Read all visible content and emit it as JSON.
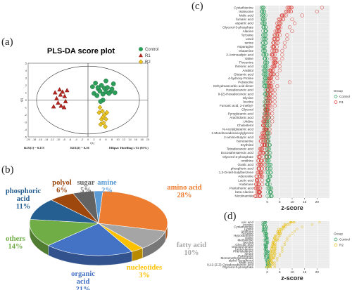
{
  "panels": {
    "a": "(a)",
    "b": "(b)",
    "c": "(c)",
    "d": "(d)"
  },
  "chart_data": [
    {
      "panel": "a",
      "type": "scatter",
      "title": "PLS-DA score plot",
      "xlabel": "t[1]",
      "ylabel": "t[2]",
      "xlim": [
        -20,
        20
      ],
      "ylim": [
        -5,
        5
      ],
      "x_ticks": [
        "-20",
        "-18",
        "-16",
        "-14",
        "-12",
        "-10",
        "-8",
        "-6",
        "-4",
        "-2",
        "0",
        "2",
        "4",
        "6",
        "8",
        "10",
        "12",
        "14",
        "16",
        "18",
        "20"
      ],
      "y_ticks": [
        "-5",
        "-4",
        "-3",
        "-2",
        "-1",
        "0",
        "1",
        "2",
        "3",
        "4",
        "5"
      ],
      "legend": [
        "Control",
        "R1",
        "R2"
      ],
      "legend_position": "top-right",
      "footer": {
        "r2x1": "R2X[1] = 0.375",
        "r2x2": "R2X[2] = 0.16",
        "ellipse": "Ellipse: Hotelling's T2 (95%)"
      },
      "series": [
        {
          "name": "Control",
          "color": "#2e9e5b",
          "marker": "circle",
          "points": [
            [
              1.5,
              1.8
            ],
            [
              2.5,
              2.3
            ],
            [
              3.5,
              1.5
            ],
            [
              4.5,
              2.0
            ],
            [
              5.5,
              1.6
            ],
            [
              6.5,
              1.7
            ],
            [
              7.5,
              1.1
            ],
            [
              8.5,
              2.2
            ],
            [
              2.0,
              0.9
            ],
            [
              3.0,
              0.6
            ],
            [
              4.0,
              1.2
            ],
            [
              5.0,
              0.8
            ],
            [
              6.0,
              1.1
            ],
            [
              7.0,
              0.9
            ],
            [
              8.0,
              1.5
            ],
            [
              9.0,
              1.0
            ],
            [
              6.0,
              2.6
            ],
            [
              5.0,
              0.0
            ],
            [
              4.2,
              -0.2
            ],
            [
              3.3,
              1.7
            ]
          ]
        },
        {
          "name": "R1",
          "color": "#b5261e",
          "marker": "triangle",
          "points": [
            [
              -11,
              1.0
            ],
            [
              -9.5,
              1.4
            ],
            [
              -8.5,
              1.1
            ],
            [
              -7,
              1.3
            ],
            [
              -10.5,
              0.2
            ],
            [
              -9.2,
              0.7
            ],
            [
              -7.8,
              0.5
            ],
            [
              -10,
              -0.4
            ],
            [
              -9,
              -0.8
            ],
            [
              -8,
              -1.0
            ],
            [
              -11.5,
              -0.9
            ],
            [
              -7.5,
              -0.2
            ]
          ]
        },
        {
          "name": "R2",
          "color": "#e8c21e",
          "marker": "diamond",
          "points": [
            [
              4.0,
              -1.0
            ],
            [
              4.8,
              -1.5
            ],
            [
              5.5,
              -2.0
            ],
            [
              4.5,
              -2.6
            ],
            [
              5.2,
              -3.1
            ],
            [
              6.0,
              -2.6
            ],
            [
              4.2,
              -3.3
            ],
            [
              5.8,
              -3.6
            ],
            [
              6.3,
              -1.7
            ],
            [
              5.0,
              -2.3
            ],
            [
              3.7,
              -1.7
            ]
          ]
        }
      ]
    },
    {
      "panel": "b",
      "type": "pie",
      "categories": [
        "amino acid",
        "fatty acid",
        "nucleotides",
        "organic acid",
        "others",
        "phosphoric acid",
        "polyol",
        "sugar",
        "amine"
      ],
      "labels": [
        "amino acid\n28%",
        "fatty acid\n10%",
        "nucleotides\n3%",
        "organic\nacid\n21%",
        "others\n14%",
        "phosphoric\nacid\n11%",
        "polyol\n6%",
        "sugar\n5%",
        "amine\n2%"
      ],
      "values": [
        28,
        10,
        3,
        21,
        14,
        11,
        6,
        5,
        2
      ],
      "colors": [
        "#ed7d31",
        "#a5a5a5",
        "#ffc000",
        "#4472c4",
        "#70ad47",
        "#255e91",
        "#9e480e",
        "#636363",
        "#5b9bd5"
      ]
    },
    {
      "panel": "c",
      "type": "scatter",
      "xlabel": "z-score",
      "xlim": [
        -5,
        25
      ],
      "x_ticks": [
        "0",
        "5",
        "10",
        "15",
        "20"
      ],
      "legend_title": "Group",
      "legend": [
        "Control",
        "R1"
      ],
      "legend_position": "right",
      "colors": {
        "Control": "#2e9e5b",
        "R1": "#d9342b"
      },
      "metabolites": [
        "Cystathionine",
        "Isoleucine",
        "Malic acid",
        "fumaric acid",
        "aspartic acid",
        "Glycerol-3-phosphate",
        "Alanine",
        "Tyrosine",
        "uracil",
        "serine",
        "Asparagine",
        "Glutamine",
        "2-Aminoadipic acid",
        "Valine",
        "Threonine",
        "threonic acid",
        "Arabitol",
        "Glutamic acid",
        "4-hydroxy-Proline",
        "Putrescine",
        "Dehydroascorbic acid dimer",
        "Hexadecanoic acid",
        "9-(Z)-Hexadecenoic acid",
        "Glycine",
        "leucine",
        "Fumaric acid, 2-methyl-",
        "Glycerol",
        "Pyroglutamic acid",
        "Arachidonic acid",
        "Uridine",
        "Cholesterol",
        "N-Acetylglutamic acid",
        "1-Monohexadecanoylglycerol",
        "2-amino-Butyric acid",
        "homoserine",
        "Erythritol",
        "Tetradecanoic acid",
        "Docosahexaenoic acid",
        "Glycerol-2-phosphate",
        "ornithine",
        "Oxalic acid",
        "phosphoric acid",
        "1,3-Di-tert-butylbenzene",
        "Adenosine",
        "Lactic acid",
        "Arabinose",
        "Pantothenic acid",
        "beta-Alanine",
        "Nicotinamide"
      ],
      "control_mean": [
        -1.6,
        -1.5,
        -1.5,
        -1.4,
        -1.4,
        -1.3,
        -1.3,
        -1.2,
        -1.2,
        -1.1,
        -1.0,
        -1.0,
        -0.9,
        -0.9,
        -0.8,
        -0.8,
        -0.7,
        -0.7,
        -0.6,
        -0.6,
        -0.5,
        -0.5,
        -0.4,
        -0.4,
        -0.3,
        -0.3,
        -0.2,
        -0.2,
        -0.1,
        -0.1,
        0.0,
        0.0,
        0.1,
        0.1,
        0.2,
        0.2,
        0.3,
        0.3,
        0.4,
        0.4,
        0.5,
        0.5,
        0.6,
        0.6,
        0.7,
        0.7,
        0.8,
        0.9,
        1.0
      ],
      "r1_mean": [
        9.0,
        8.5,
        6.5,
        5.5,
        5.0,
        4.8,
        4.3,
        4.0,
        3.6,
        3.4,
        3.2,
        3.0,
        2.8,
        2.6,
        2.4,
        2.2,
        2.0,
        1.8,
        1.6,
        1.4,
        1.2,
        1.0,
        0.8,
        0.6,
        0.4,
        0.2,
        0.0,
        -0.2,
        -0.4,
        -0.6,
        -0.8,
        -1.0,
        -1.2,
        -1.4,
        -1.6,
        -1.8,
        -2.0,
        -2.2,
        -2.4,
        -2.6,
        -2.8,
        -3.0,
        -3.2,
        -3.4,
        -3.5,
        -3.6,
        -3.7,
        -3.8,
        -3.9
      ],
      "r1_max": [
        22,
        20,
        14,
        10,
        11,
        9,
        10,
        8,
        8,
        7,
        7,
        6,
        6,
        6,
        5,
        5,
        5,
        4,
        4,
        9,
        4,
        3,
        3,
        3,
        3,
        3,
        2,
        2,
        2,
        2,
        1,
        1,
        1,
        0,
        0,
        0,
        0,
        0,
        0,
        -1,
        -1,
        -1,
        -2,
        -2,
        -2,
        -2,
        -3,
        -3,
        -3
      ]
    },
    {
      "panel": "d",
      "type": "scatter",
      "xlabel": "z-score",
      "xlim": [
        -5,
        25
      ],
      "x_ticks": [
        "0",
        "5",
        "10",
        "15",
        "20"
      ],
      "legend_title": "Group",
      "legend": [
        "Control",
        "R2"
      ],
      "legend_position": "right",
      "colors": {
        "Control": "#2e9e5b",
        "R2": "#e8c21e"
      },
      "metabolites": [
        "uric acid",
        "Inosine",
        "Cystathionine",
        "Lysine",
        "ornithine",
        "Tyrosine",
        "Hypoxanthine",
        "Valine",
        "Methionine",
        "leucine",
        "Glycolic acid",
        "Glucopyranose",
        "beta-Alanine",
        "Phenylalanine",
        "serine",
        "Putrescine",
        "Monomethylphosphate",
        "alpha-Tocopherol",
        "Malic acid",
        "9,12-(Z,Z)-Octadecadienoic acid",
        "Glycerol-3-phosphate"
      ],
      "control_mean": [
        -1.2,
        -1.1,
        -1.0,
        -0.9,
        -0.9,
        -0.8,
        -0.7,
        -0.7,
        -0.6,
        -0.5,
        -0.5,
        -0.4,
        -0.3,
        -0.3,
        -0.2,
        -0.1,
        0.0,
        0.1,
        0.2,
        0.3,
        0.4
      ],
      "r2_mean": [
        10.0,
        8.0,
        6.5,
        5.5,
        5.0,
        4.5,
        4.2,
        3.8,
        3.5,
        3.2,
        3.0,
        2.8,
        2.6,
        2.4,
        2.2,
        2.0,
        1.8,
        1.5,
        1.2,
        1.0,
        0.8
      ],
      "r2_max": [
        21,
        18,
        14,
        12,
        11,
        10,
        9,
        8,
        8,
        7,
        7,
        6,
        6,
        6,
        5,
        5,
        4,
        4,
        3,
        3,
        3
      ]
    }
  ]
}
